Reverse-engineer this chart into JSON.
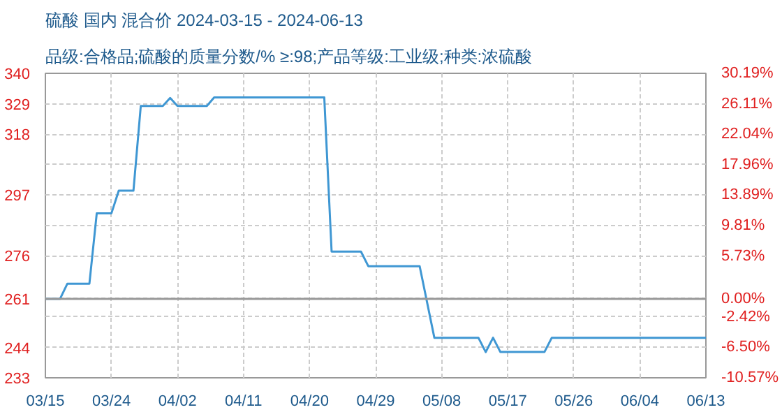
{
  "chart_data": {
    "type": "line",
    "title": "硫酸 国内 混合价 2024-03-15 - 2024-06-13",
    "subtitle": "品级:合格品;硫酸的质量分数/% ≥:98;产品等级:工业级;种类:浓硫酸",
    "x": [
      "2024-03-15",
      "2024-03-17",
      "2024-03-18",
      "2024-03-21",
      "2024-03-22",
      "2024-03-24",
      "2024-03-25",
      "2024-03-27",
      "2024-03-28",
      "2024-03-31",
      "2024-04-01",
      "2024-04-02",
      "2024-04-06",
      "2024-04-07",
      "2024-04-22",
      "2024-04-23",
      "2024-04-27",
      "2024-04-28",
      "2024-05-05",
      "2024-05-07",
      "2024-05-13",
      "2024-05-14",
      "2024-05-15",
      "2024-05-16",
      "2024-05-22",
      "2024-05-23",
      "2024-06-13"
    ],
    "series": [
      {
        "color": "#3f97d3",
        "values": [
          261,
          261,
          266.3,
          266.3,
          290.9,
          290.9,
          298.8,
          298.8,
          328.4,
          328.4,
          331.2,
          328.4,
          328.4,
          331.4,
          331.4,
          277.5,
          277.5,
          272.4,
          272.4,
          247.4,
          247.4,
          242.4,
          247.4,
          242.4,
          242.4,
          247.4,
          247.4
        ]
      }
    ],
    "xlim": [
      "2024-03-15",
      "2024-06-13"
    ],
    "xticks": [
      {
        "value": "2024-03-15",
        "label": "03/15"
      },
      {
        "value": "2024-03-24",
        "label": "03/24"
      },
      {
        "value": "2024-04-02",
        "label": "04/02"
      },
      {
        "value": "2024-04-11",
        "label": "04/11"
      },
      {
        "value": "2024-04-20",
        "label": "04/20"
      },
      {
        "value": "2024-04-29",
        "label": "04/29"
      },
      {
        "value": "2024-05-08",
        "label": "05/08"
      },
      {
        "value": "2024-05-17",
        "label": "05/17"
      },
      {
        "value": "2024-05-26",
        "label": "05/26"
      },
      {
        "value": "2024-06-04",
        "label": "06/04"
      },
      {
        "value": "2024-06-13",
        "label": "06/13"
      }
    ],
    "ylim": [
      233.4,
      339.8
    ],
    "yticks": [
      {
        "value": 339.8,
        "label": "340"
      },
      {
        "value": 329.1,
        "label": "329"
      },
      {
        "value": 318.5,
        "label": "318"
      },
      {
        "value": 297.3,
        "label": "297"
      },
      {
        "value": 276.0,
        "label": "276"
      },
      261,
      {
        "value": 244.0,
        "label": "244"
      },
      {
        "value": 233.4,
        "label": "233"
      }
    ],
    "y2lim": [
      -10.57,
      30.19
    ],
    "y2ticks": [
      {
        "value": 30.19,
        "label": "30.19%"
      },
      {
        "value": 26.11,
        "label": "26.11%"
      },
      {
        "value": 22.04,
        "label": "22.04%"
      },
      {
        "value": 17.96,
        "label": "17.96%"
      },
      {
        "value": 13.89,
        "label": "13.89%"
      },
      {
        "value": 9.81,
        "label": "9.81%"
      },
      {
        "value": 5.73,
        "label": "5.73%"
      },
      {
        "value": 0,
        "label": "0.00%"
      },
      {
        "value": -2.42,
        "label": "-2.42%"
      },
      {
        "value": -6.5,
        "label": "-6.50%"
      },
      {
        "value": -10.57,
        "label": "-10.57%"
      }
    ],
    "ref_lines": [
      {
        "axis": "y2",
        "value": 0,
        "color": "#999999"
      }
    ],
    "grid": true,
    "marker": "none",
    "line_style": "solid"
  }
}
